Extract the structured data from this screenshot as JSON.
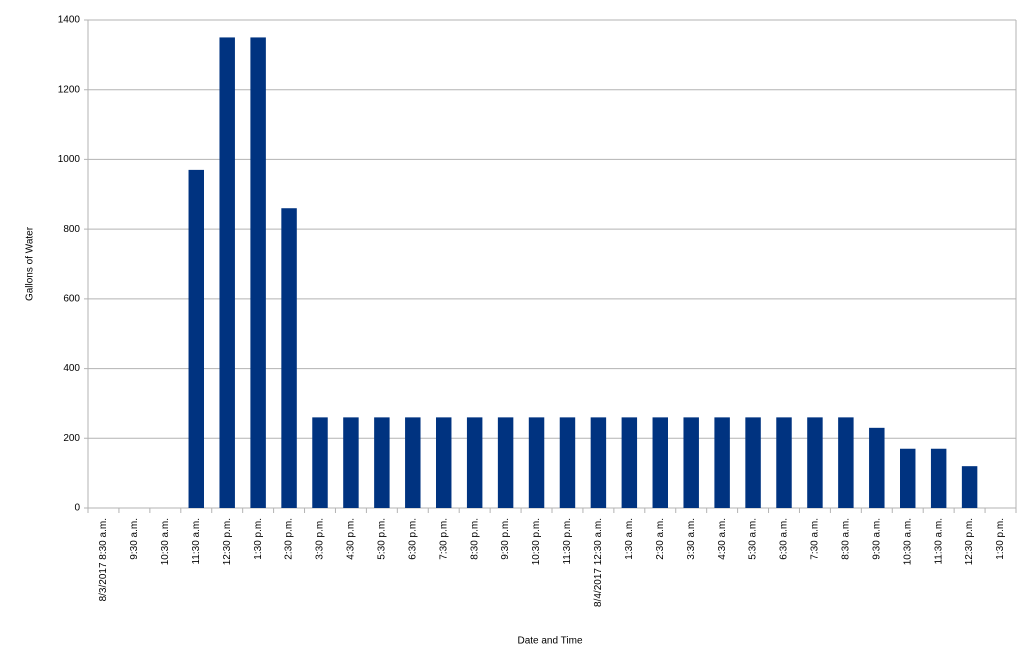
{
  "chart_data": {
    "type": "bar",
    "x_label": "Date and Time",
    "y_label": "Gallons of Water",
    "categories": [
      "8/3/2017 8:30 a.m.",
      "9:30 a.m.",
      "10:30 a.m.",
      "11:30 a.m.",
      "12:30 p.m.",
      "1:30 p.m.",
      "2:30 p.m.",
      "3:30 p.m.",
      "4:30 p.m.",
      "5:30 p.m.",
      "6:30 p.m.",
      "7:30 p.m.",
      "8:30 p.m.",
      "9:30 p.m.",
      "10:30 p.m.",
      "11:30 p.m.",
      "8/4/2017 12:30 a.m.",
      "1:30 a.m.",
      "2:30 a.m.",
      "3:30 a.m.",
      "4:30 a.m.",
      "5:30 a.m.",
      "6:30 a.m.",
      "7:30 a.m.",
      "8:30 a.m.",
      "9:30 a.m.",
      "10:30 a.m.",
      "11:30 a.m.",
      "12:30 p.m.",
      "1:30 p.m."
    ],
    "values": [
      0,
      0,
      0,
      970,
      1350,
      1350,
      860,
      260,
      260,
      260,
      260,
      260,
      260,
      260,
      260,
      260,
      260,
      260,
      260,
      260,
      260,
      260,
      260,
      260,
      260,
      230,
      170,
      170,
      120,
      0
    ],
    "color": "#003380",
    "ylim": [
      0,
      1400
    ],
    "yticks": [
      0,
      200,
      400,
      600,
      800,
      1000,
      1200,
      1400
    ],
    "grid": true
  }
}
